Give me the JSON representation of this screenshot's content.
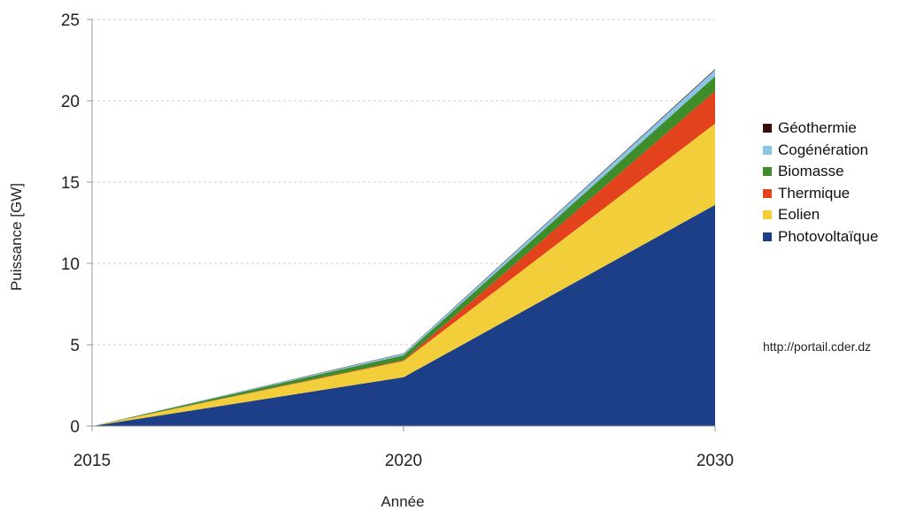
{
  "chart_data": {
    "type": "area",
    "stacked": true,
    "x": [
      2015,
      2020,
      2030
    ],
    "xlabel": "Année",
    "ylabel": "Puissance [GW]",
    "ylim": [
      0,
      25
    ],
    "yticks": [
      0,
      5,
      10,
      15,
      20,
      25
    ],
    "grid": true,
    "legend_position": "right",
    "series": [
      {
        "name": "Photovoltaïque",
        "color": "#1c3f88",
        "values": [
          0,
          3.0,
          13.6
        ]
      },
      {
        "name": "Eolien",
        "color": "#f2cf3a",
        "values": [
          0,
          1.0,
          5.0
        ]
      },
      {
        "name": "Thermique",
        "color": "#e2431c",
        "values": [
          0,
          0.05,
          2.0
        ]
      },
      {
        "name": "Biomasse",
        "color": "#3f8c2a",
        "values": [
          0,
          0.3,
          0.9
        ]
      },
      {
        "name": "Cogénération",
        "color": "#8ac4e6",
        "values": [
          0,
          0.1,
          0.4
        ]
      },
      {
        "name": "Géothermie",
        "color": "#3a0d0d",
        "values": [
          0,
          0.02,
          0.05
        ]
      }
    ]
  },
  "legend_order": [
    "Géothermie",
    "Cogénération",
    "Biomasse",
    "Thermique",
    "Eolien",
    "Photovoltaïque"
  ],
  "source": "http://portail.cder.dz"
}
